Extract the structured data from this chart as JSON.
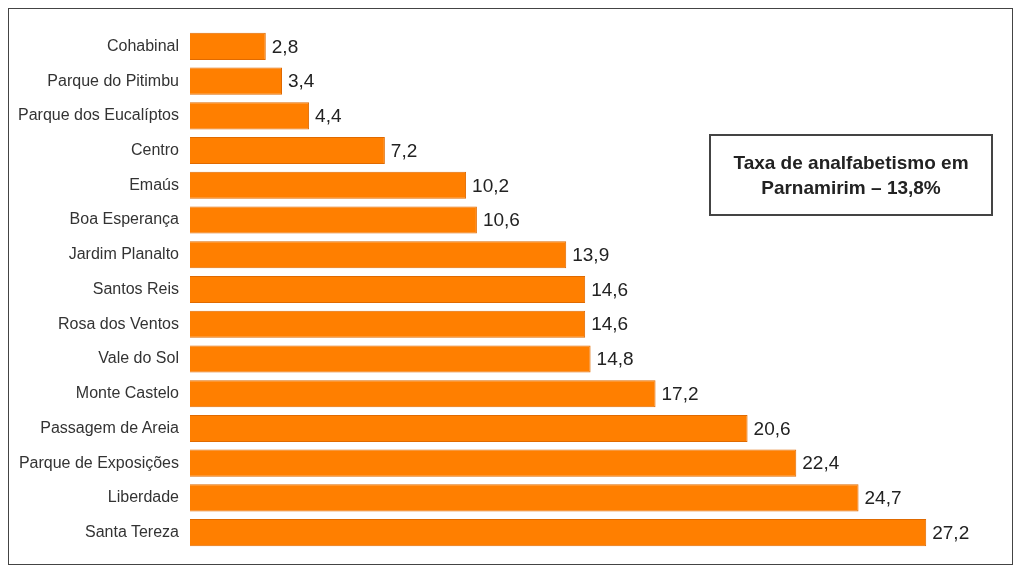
{
  "chart_data": {
    "type": "bar",
    "orientation": "horizontal",
    "categories": [
      "Cohabinal",
      "Parque do Pitimbu",
      "Parque dos Eucalíptos",
      "Centro",
      "Emaús",
      "Boa Esperança",
      "Jardim Planalto",
      "Santos Reis",
      "Rosa dos Ventos",
      "Vale do Sol",
      "Monte Castelo",
      "Passagem de Areia",
      "Parque de Exposições",
      "Liberdade",
      "Santa Tereza"
    ],
    "values": [
      2.8,
      3.4,
      4.4,
      7.2,
      10.2,
      10.6,
      13.9,
      14.6,
      14.6,
      14.8,
      17.2,
      20.6,
      22.4,
      24.7,
      27.2
    ],
    "value_labels": [
      "2,8",
      "3,4",
      "4,4",
      "7,2",
      "10,2",
      "10,6",
      "13,9",
      "14,6",
      "14,6",
      "14,8",
      "17,2",
      "20,6",
      "22,4",
      "24,7",
      "27,2"
    ],
    "color": "#ff7f00",
    "annotations": [
      "Taxa de analfabetismo em Parnamirim – 13,8%"
    ],
    "legend": false
  }
}
